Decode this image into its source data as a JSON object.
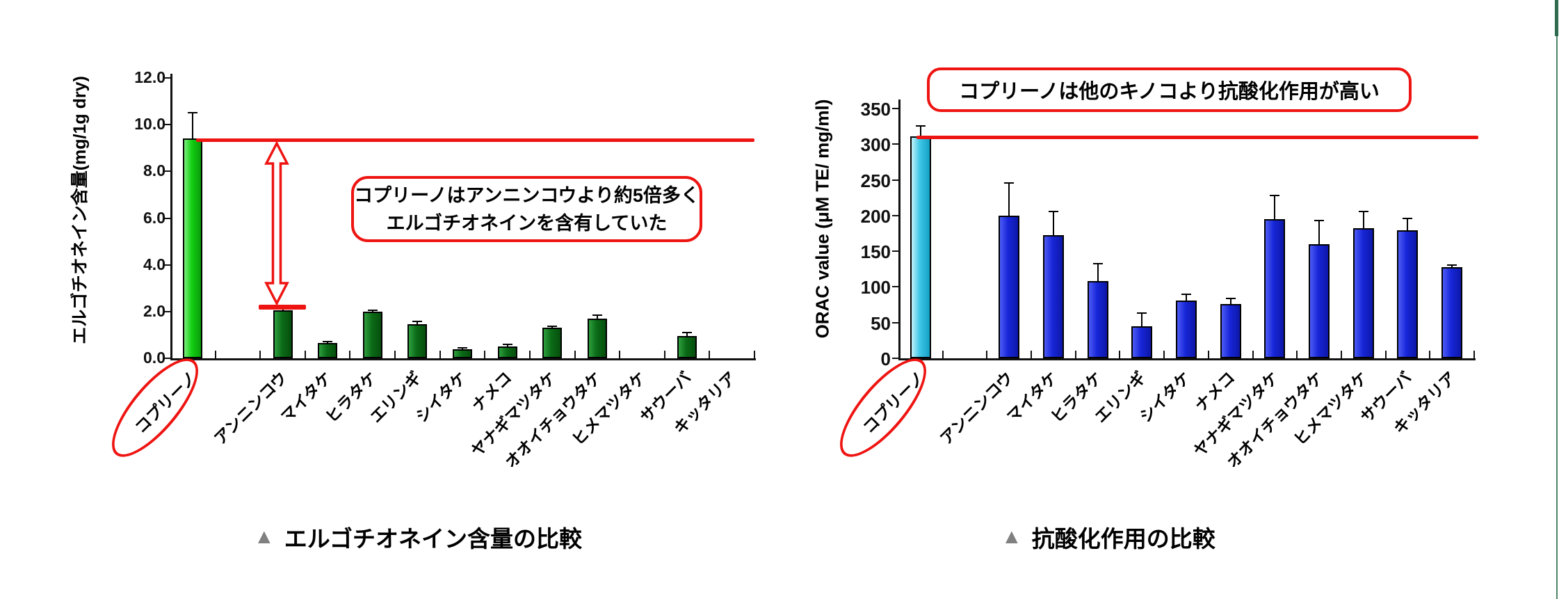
{
  "page": {
    "background": "#ffffff"
  },
  "decorations": {
    "right_edge_thick_color": "#2e6b4f",
    "right_edge_thin_color": "#4f8568"
  },
  "accent_red": "#ee1411",
  "chart_data": [
    {
      "type": "bar",
      "title": "",
      "ylabel": "エルゴチオネイン含量(mg/1g dry)",
      "xlabel": "",
      "ylim": [
        0,
        12
      ],
      "ytick_step": 2,
      "ytick_decimals": 1,
      "grid": false,
      "legend": "none",
      "categories": [
        "コプリーノ",
        "アンニンコウ",
        "マイタケ",
        "ヒラタケ",
        "エリンギ",
        "シイタケ",
        "ナメコ",
        "ヤナギマツタケ",
        "オオイチョウタケ",
        "ヒメマツタケ",
        "サウーバ",
        "キッタリア"
      ],
      "values": [
        9.4,
        2.05,
        0.65,
        2.0,
        1.45,
        0.4,
        0.5,
        1.3,
        1.7,
        null,
        0.95,
        null
      ],
      "errors_plus": [
        1.1,
        0.1,
        0.05,
        0.05,
        0.12,
        0.06,
        0.1,
        0.08,
        0.15,
        null,
        0.15,
        null
      ],
      "highlight_index": 0,
      "circled_category": "コプリーノ",
      "reference_line_value": 9.35,
      "compare_line": {
        "category_index": 1,
        "value": 2.1
      },
      "annotation_lines": [
        "コプリーノはアンニンコウより約5倍多く",
        "エルゴチオネインを含有していた"
      ],
      "bar_colors": {
        "light": "#2e9e3e",
        "mid": "#0b6b17",
        "dark": "#064f0d"
      },
      "highlight_colors": {
        "light": "#7dee7d",
        "mid": "#12cf12",
        "dark": "#0a9c0a"
      }
    },
    {
      "type": "bar",
      "title": "",
      "ylabel": "ORAC value (μM TE/ mg/ml)",
      "xlabel": "",
      "ylim": [
        0,
        350
      ],
      "ytick_step": 50,
      "ytick_decimals": 0,
      "grid": false,
      "legend": "none",
      "categories": [
        "コプリーノ",
        "アンニンコウ",
        "マイタケ",
        "ヒラタケ",
        "エリンギ",
        "シイタケ",
        "ナメコ",
        "ヤナギマツタケ",
        "オオイチョウタケ",
        "ヒメマツタケ",
        "サウーバ",
        "キッタリア"
      ],
      "values": [
        311,
        200,
        173,
        108,
        45,
        81,
        76,
        195,
        160,
        182,
        179,
        128
      ],
      "errors_plus": [
        15,
        46,
        33,
        25,
        18,
        9,
        8,
        33,
        33,
        24,
        17,
        3
      ],
      "highlight_index": 0,
      "circled_category": "コプリーノ",
      "reference_line_value": 310,
      "annotation_lines": [
        "コプリーノは他のキノコより抗酸化作用が高い"
      ],
      "bar_colors": {
        "light": "#4d5cf5",
        "mid": "#1726d8",
        "dark": "#0d17a8"
      },
      "highlight_colors": {
        "light": "#c2f2fb",
        "mid": "#3ec7e6",
        "dark": "#149fc6"
      }
    }
  ],
  "captions": [
    {
      "marker": "▲",
      "text": "エルゴチオネイン含量の比較"
    },
    {
      "marker": "▲",
      "text": "抗酸化作用の比較"
    }
  ]
}
